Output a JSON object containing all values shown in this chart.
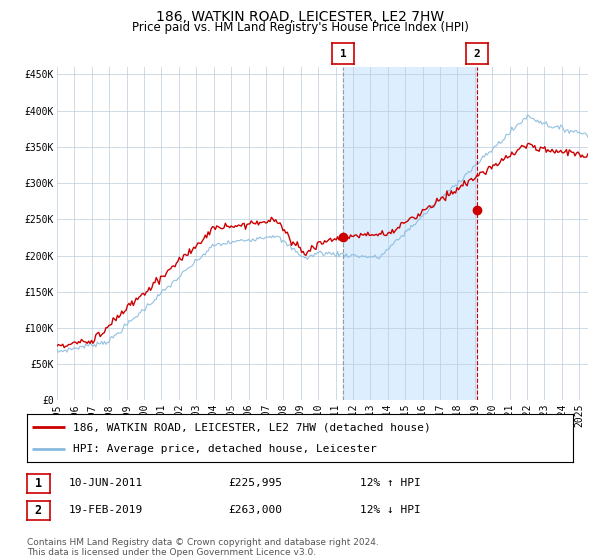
{
  "title": "186, WATKIN ROAD, LEICESTER, LE2 7HW",
  "subtitle": "Price paid vs. HM Land Registry's House Price Index (HPI)",
  "ylim": [
    0,
    460000
  ],
  "yticks": [
    0,
    50000,
    100000,
    150000,
    200000,
    250000,
    300000,
    350000,
    400000,
    450000
  ],
  "ytick_labels": [
    "£0",
    "£50K",
    "£100K",
    "£150K",
    "£200K",
    "£250K",
    "£300K",
    "£350K",
    "£400K",
    "£450K"
  ],
  "red_line_color": "#cc0000",
  "blue_line_color": "#88bbdd",
  "shade_color": "#ddeeff",
  "plot_bg": "#ffffff",
  "grid_color": "#bbccdd",
  "marker1_date_num": 2011.44,
  "marker1_value": 225995,
  "marker2_date_num": 2019.12,
  "marker2_value": 263000,
  "vline1_color": "#999999",
  "vline2_color": "#cc0000",
  "legend1_label": "186, WATKIN ROAD, LEICESTER, LE2 7HW (detached house)",
  "legend2_label": "HPI: Average price, detached house, Leicester",
  "row1": [
    "1",
    "10-JUN-2011",
    "£225,995",
    "12% ↑ HPI"
  ],
  "row2": [
    "2",
    "19-FEB-2019",
    "£263,000",
    "12% ↓ HPI"
  ],
  "footer": "Contains HM Land Registry data © Crown copyright and database right 2024.\nThis data is licensed under the Open Government Licence v3.0.",
  "title_fontsize": 10,
  "subtitle_fontsize": 8.5,
  "tick_fontsize": 7,
  "legend_fontsize": 8,
  "footer_fontsize": 6.5
}
